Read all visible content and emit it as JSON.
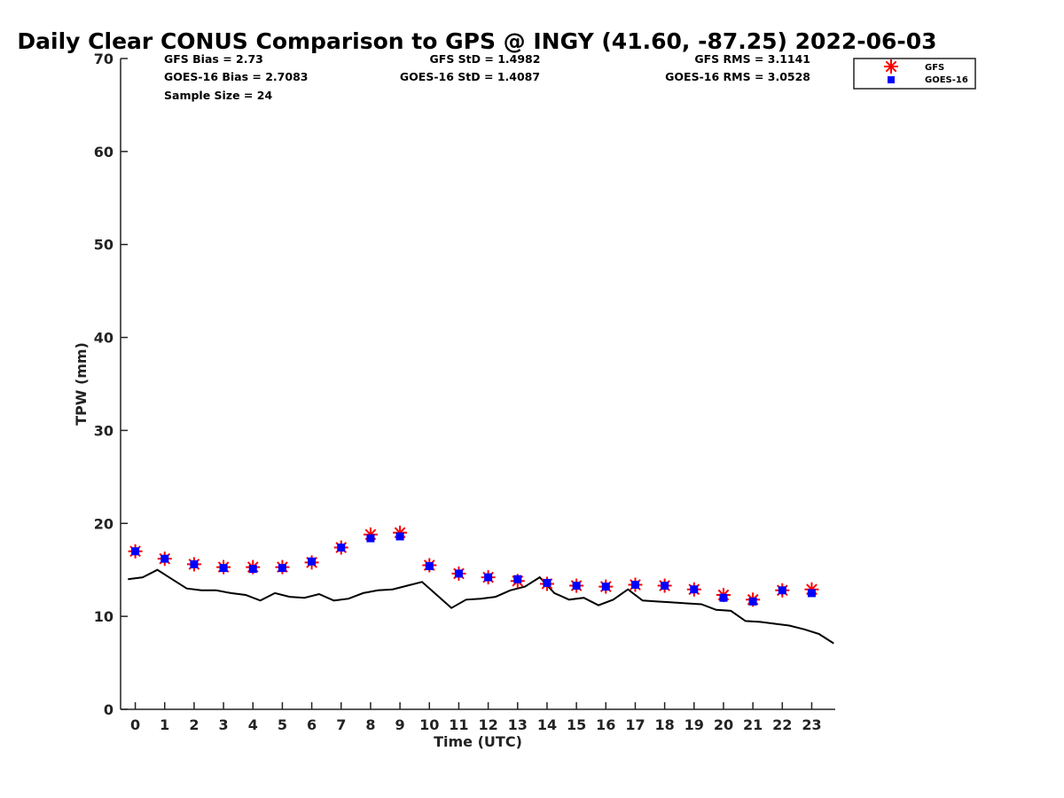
{
  "chart_data": {
    "type": "line",
    "title": "Daily Clear CONUS Comparison to GPS @ INGY (41.60, -87.25) 2022-06-03",
    "xlabel": "Time (UTC)",
    "ylabel": "TPW (mm)",
    "xlim": [
      -0.5,
      23.8
    ],
    "ylim": [
      0,
      70
    ],
    "x_ticks": [
      "0",
      "1",
      "2",
      "3",
      "4",
      "5",
      "6",
      "7",
      "8",
      "9",
      "10",
      "11",
      "12",
      "13",
      "14",
      "15",
      "16",
      "17",
      "18",
      "19",
      "20",
      "21",
      "22",
      "23"
    ],
    "y_ticks": [
      "0",
      "10",
      "20",
      "30",
      "40",
      "50",
      "60",
      "70"
    ],
    "grid": false,
    "legend_position": "top-right",
    "stats": {
      "gfs_bias": "GFS Bias = 2.73",
      "goes_bias": "GOES-16 Bias = 2.7083",
      "sample_size": "Sample Size = 24",
      "gfs_std": "GFS StD = 1.4982",
      "goes_std": "GOES-16 StD = 1.4087",
      "gfs_rms": "GFS RMS = 3.1141",
      "goes_rms": "GOES-16 RMS = 3.0528"
    },
    "series": [
      {
        "name": "GFS",
        "marker": "asterisk",
        "color": "#ff0000",
        "x": [
          0,
          1,
          2,
          3,
          4,
          5,
          6,
          7,
          8,
          9,
          10,
          11,
          12,
          13,
          14,
          15,
          16,
          17,
          18,
          19,
          20,
          21,
          22,
          23
        ],
        "y": [
          17.0,
          16.2,
          15.6,
          15.3,
          15.3,
          15.3,
          15.8,
          17.4,
          18.8,
          19.0,
          15.5,
          14.6,
          14.2,
          13.8,
          13.5,
          13.3,
          13.2,
          13.4,
          13.3,
          12.9,
          12.3,
          11.8,
          12.8,
          12.9
        ]
      },
      {
        "name": "GOES-16",
        "marker": "square",
        "color": "#0000ff",
        "x": [
          0,
          1,
          2,
          3,
          4,
          5,
          6,
          7,
          8,
          9,
          10,
          11,
          12,
          13,
          14,
          15,
          16,
          17,
          18,
          19,
          20,
          21,
          22,
          23
        ],
        "y": [
          17.0,
          16.2,
          15.6,
          15.2,
          15.1,
          15.2,
          15.9,
          17.4,
          18.4,
          18.6,
          15.4,
          14.6,
          14.2,
          14.0,
          13.6,
          13.3,
          13.2,
          13.4,
          13.3,
          12.9,
          12.0,
          11.6,
          12.8,
          12.5
        ]
      },
      {
        "color": "#000000",
        "marker": "none",
        "x": [
          -0.25,
          0.25,
          0.75,
          1.25,
          1.75,
          2.25,
          2.75,
          3.25,
          3.75,
          4.25,
          4.75,
          5.25,
          5.75,
          6.25,
          6.75,
          7.25,
          7.75,
          8.25,
          8.75,
          9.25,
          9.75,
          10.25,
          10.75,
          11.25,
          11.75,
          12.25,
          12.75,
          13.25,
          13.75,
          14.25,
          14.75,
          15.25,
          15.75,
          16.25,
          16.75,
          17.25,
          17.75,
          18.25,
          18.75,
          19.25,
          19.75,
          20.25,
          20.75,
          21.25,
          21.75,
          22.25,
          22.75,
          23.25,
          23.75
        ],
        "y": [
          14.0,
          14.2,
          15.0,
          14.0,
          13.0,
          12.8,
          12.8,
          12.5,
          12.3,
          11.7,
          12.5,
          12.1,
          12.0,
          12.4,
          11.7,
          11.9,
          12.5,
          12.8,
          12.9,
          13.3,
          13.7,
          12.3,
          10.9,
          11.8,
          11.9,
          12.1,
          12.8,
          13.2,
          14.2,
          12.5,
          11.8,
          12.0,
          11.2,
          11.8,
          12.9,
          11.7,
          11.6,
          11.5,
          11.4,
          11.3,
          10.7,
          10.6,
          9.5,
          9.4,
          9.2,
          9.0,
          8.6,
          8.1,
          7.1
        ]
      }
    ]
  }
}
